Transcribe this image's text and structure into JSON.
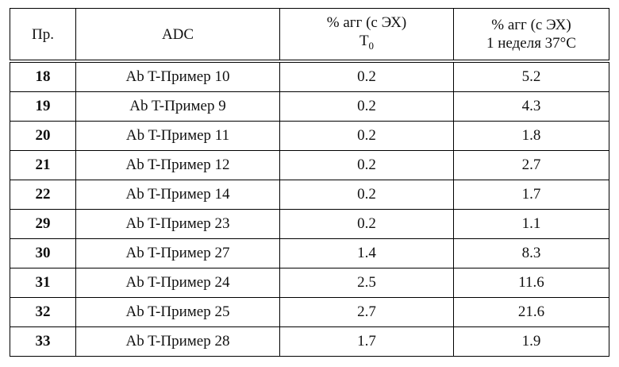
{
  "table": {
    "header": [
      {
        "lines": [
          "Пр."
        ]
      },
      {
        "lines": [
          "ADC"
        ]
      },
      {
        "lines": [
          "% агг (с ЭХ)"
        ],
        "base": "T",
        "sub": "0"
      },
      {
        "lines": [
          "% агг (с ЭХ)",
          "1 неделя 37°C"
        ]
      }
    ],
    "rows": [
      [
        "18",
        "Ab T-Пример 10",
        "0.2",
        "5.2"
      ],
      [
        "19",
        "Ab T-Пример 9",
        "0.2",
        "4.3"
      ],
      [
        "20",
        "Ab T-Пример 11",
        "0.2",
        "1.8"
      ],
      [
        "21",
        "Ab T-Пример 12",
        "0.2",
        "2.7"
      ],
      [
        "22",
        "Ab T-Пример 14",
        "0.2",
        "1.7"
      ],
      [
        "29",
        "Ab T-Пример 23",
        "0.2",
        "1.1"
      ],
      [
        "30",
        "Ab T-Пример 27",
        "1.4",
        "8.3"
      ],
      [
        "31",
        "Ab T-Пример 24",
        "2.5",
        "11.6"
      ],
      [
        "32",
        "Ab T-Пример 25",
        "2.7",
        "21.6"
      ],
      [
        "33",
        "Ab T-Пример 28",
        "1.7",
        "1.9"
      ]
    ]
  }
}
